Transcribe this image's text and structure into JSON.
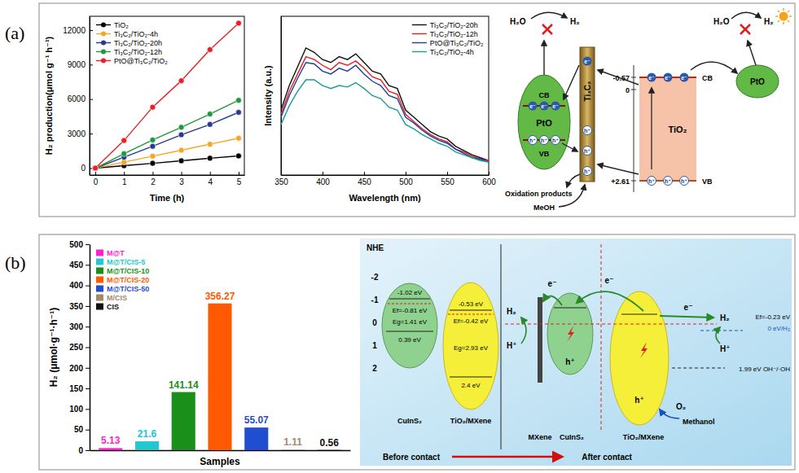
{
  "panel_labels": [
    "(a)",
    "(b)"
  ],
  "chart_data": [
    {
      "type": "line",
      "xlabel": "Time (h)",
      "ylabel": "H₂ production(μmol g⁻¹ h⁻¹)",
      "x": [
        0,
        1,
        2,
        3,
        4,
        5
      ],
      "xlim": [
        -0.2,
        5.2
      ],
      "xticks": [
        0,
        1,
        2,
        3,
        4,
        5
      ],
      "ylim": [
        -600,
        13200
      ],
      "yticks": [
        0,
        3000,
        6000,
        9000,
        12000
      ],
      "legend": "upper left",
      "marker": "circle",
      "series": [
        {
          "name": "TiO₂",
          "color": "#000000",
          "values": [
            0,
            210,
            420,
            640,
            860,
            1060
          ]
        },
        {
          "name": "Ti₃C₂/TiO₂-4h",
          "color": "#f5a623",
          "values": [
            0,
            520,
            1040,
            1560,
            2080,
            2600
          ]
        },
        {
          "name": "Ti₃C₂/TiO₂-20h",
          "color": "#2b3a8f",
          "values": [
            0,
            950,
            1900,
            2900,
            3800,
            4850
          ]
        },
        {
          "name": "Ti₃C₂/TiO₂-12h",
          "color": "#1d9a3a",
          "values": [
            0,
            1250,
            2450,
            3550,
            4700,
            5900
          ]
        },
        {
          "name": "PtO@Ti₃C₂/TiO₂",
          "color": "#e8202a",
          "values": [
            0,
            2400,
            5300,
            7600,
            10300,
            12600
          ]
        }
      ]
    },
    {
      "type": "line",
      "xlabel": "Wavelength (nm)",
      "ylabel": "Intensity (a.u.)",
      "x": [
        350,
        360,
        370,
        380,
        390,
        400,
        410,
        420,
        430,
        440,
        450,
        460,
        470,
        480,
        490,
        500,
        510,
        520,
        530,
        540,
        550,
        560,
        570,
        580,
        590,
        600
      ],
      "xlim": [
        350,
        600
      ],
      "xticks": [
        350,
        400,
        450,
        500,
        550,
        600
      ],
      "ylim": [
        0,
        110
      ],
      "tick_labels": "x",
      "legend": "upper right",
      "series": [
        {
          "name": "Ti₃C₂/TiO₂-20h",
          "color": "#111111",
          "values": [
            45,
            62,
            75,
            88,
            85,
            80,
            78,
            82,
            80,
            84,
            78,
            72,
            70,
            62,
            60,
            45,
            40,
            35,
            30,
            27,
            25,
            20,
            17,
            14,
            12,
            10
          ]
        },
        {
          "name": "Ti₃C₂/TiO₂-12h",
          "color": "#e02020",
          "values": [
            42,
            58,
            70,
            82,
            80,
            76,
            73,
            78,
            76,
            79,
            74,
            68,
            66,
            58,
            56,
            42,
            37,
            32,
            28,
            25,
            23,
            18,
            16,
            13,
            11,
            10
          ]
        },
        {
          "name": "PtO@Ti₃C₂/TiO₂",
          "color": "#1f3f9f",
          "values": [
            40,
            55,
            67,
            78,
            77,
            72,
            70,
            74,
            72,
            76,
            70,
            65,
            62,
            55,
            53,
            40,
            36,
            31,
            27,
            24,
            22,
            18,
            15,
            12,
            11,
            9
          ]
        },
        {
          "name": "Ti₃C₂/TiO₂-4h",
          "color": "#1a9a9a",
          "values": [
            35,
            48,
            58,
            66,
            66,
            62,
            60,
            62,
            61,
            64,
            60,
            55,
            53,
            47,
            45,
            35,
            32,
            28,
            25,
            22,
            20,
            16,
            14,
            12,
            10,
            9
          ]
        }
      ]
    },
    {
      "type": "bar",
      "xlabel": "Samples",
      "ylabel": "H₂ (μmol·g⁻¹·h⁻¹)",
      "categories": [
        "M@T",
        "M@T/CIS-5",
        "M@T/CIS-10",
        "M@T/CIS-20",
        "M@T/CIS-50",
        "M/CIS",
        "CIS"
      ],
      "values": [
        5.13,
        21.6,
        141.14,
        356.27,
        55.07,
        1.11,
        0.56
      ],
      "colors": [
        "#ff22cc",
        "#22c8d0",
        "#1a8f1a",
        "#ff5a00",
        "#1f4fd0",
        "#a08a68",
        "#111111"
      ],
      "ylim": [
        0,
        500
      ],
      "yticks": [
        0,
        50,
        100,
        150,
        200,
        250,
        300,
        350,
        400,
        450,
        500
      ],
      "data_labels": true,
      "tick_labels": "y",
      "legend": "upper left"
    }
  ],
  "diagrams": [
    {
      "labels": {
        "cb": "CB",
        "vb": "VB",
        "pto": "PtO",
        "ti3c2": "Ti₃C₂",
        "tio2": "TiO₂",
        "h2o": "H₂O",
        "h2": "H₂",
        "electron": "e⁻",
        "hole": "h⁺",
        "oxidation_products": "Oxidation products",
        "meoh": "MeOH"
      },
      "potentials": {
        "cb": "-0.57",
        "zero": "0",
        "vb": "+2.61"
      }
    },
    {
      "axis_title": "NHE",
      "axis_ticks": [
        "-2",
        "-1",
        "0",
        "1",
        "2"
      ],
      "before_contact": {
        "caption": "Before contact",
        "cuins2": {
          "name": "CuInS₂",
          "cb": "-1.02 eV",
          "ef": "Ef=-0.81 eV",
          "eg": "Eg=1.41 eV",
          "vb": "0.39 eV"
        },
        "tio2_mxene": {
          "name": "TiO₂/MXene",
          "cb": "-0.53 eV",
          "ef": "Ef=-0.42 eV",
          "eg": "Eg=2.93 eV",
          "vb": "2.4 eV"
        }
      },
      "after_contact": {
        "caption": "After contact",
        "mxene": "MXene",
        "cuins2": "CuInS₂",
        "tio2_mxene": "TiO₂/MXene",
        "ef": "Ef=-0.23 eV",
        "h2_potential": "0 eV/H₂",
        "oh_potential": "1.99 eV OH⁻/·OH",
        "h2": "H₂",
        "h_plus": "H⁺",
        "electron": "e⁻",
        "hole": "h⁺",
        "o2": "O₂",
        "methanol": "Methanol"
      }
    }
  ]
}
